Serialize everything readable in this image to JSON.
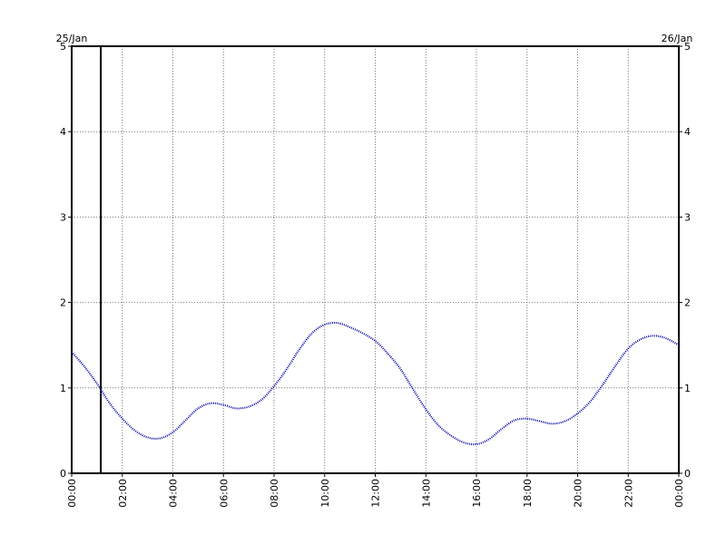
{
  "chart_data": {
    "type": "line",
    "title": "",
    "xlabel": "",
    "ylabel": "",
    "date_labels": {
      "start": "25/Jan",
      "end": "26/Jan"
    },
    "xlim": [
      0,
      24
    ],
    "ylim": [
      0,
      5
    ],
    "x_ticks": [
      "00:00",
      "02:00",
      "04:00",
      "06:00",
      "08:00",
      "10:00",
      "12:00",
      "14:00",
      "16:00",
      "18:00",
      "20:00",
      "22:00",
      "00:00"
    ],
    "y_ticks": [
      "0",
      "1",
      "2",
      "3",
      "4",
      "5"
    ],
    "grid": true,
    "marker_line_x": 1.15,
    "series_color": "#0000aa",
    "series": [
      {
        "x": [
          0,
          0.5,
          1,
          1.5,
          2,
          2.5,
          3,
          3.5,
          4,
          4.5,
          5,
          5.5,
          6,
          6.5,
          7,
          7.5,
          8,
          8.5,
          9,
          9.5,
          10,
          10.5,
          11,
          11.5,
          12,
          12.5,
          13,
          13.5,
          14,
          14.5,
          15,
          15.5,
          16,
          16.5,
          17,
          17.5,
          18,
          18.5,
          19,
          19.5,
          20,
          20.5,
          21,
          21.5,
          22,
          22.5,
          23,
          23.5,
          24
        ],
        "values": [
          1.42,
          1.25,
          1.05,
          0.82,
          0.64,
          0.5,
          0.42,
          0.41,
          0.48,
          0.62,
          0.76,
          0.82,
          0.8,
          0.76,
          0.78,
          0.86,
          1.02,
          1.22,
          1.45,
          1.64,
          1.74,
          1.76,
          1.71,
          1.64,
          1.55,
          1.4,
          1.22,
          0.98,
          0.75,
          0.56,
          0.44,
          0.36,
          0.34,
          0.4,
          0.52,
          0.62,
          0.64,
          0.61,
          0.58,
          0.61,
          0.7,
          0.84,
          1.04,
          1.26,
          1.46,
          1.57,
          1.61,
          1.58,
          1.5
        ]
      }
    ]
  }
}
